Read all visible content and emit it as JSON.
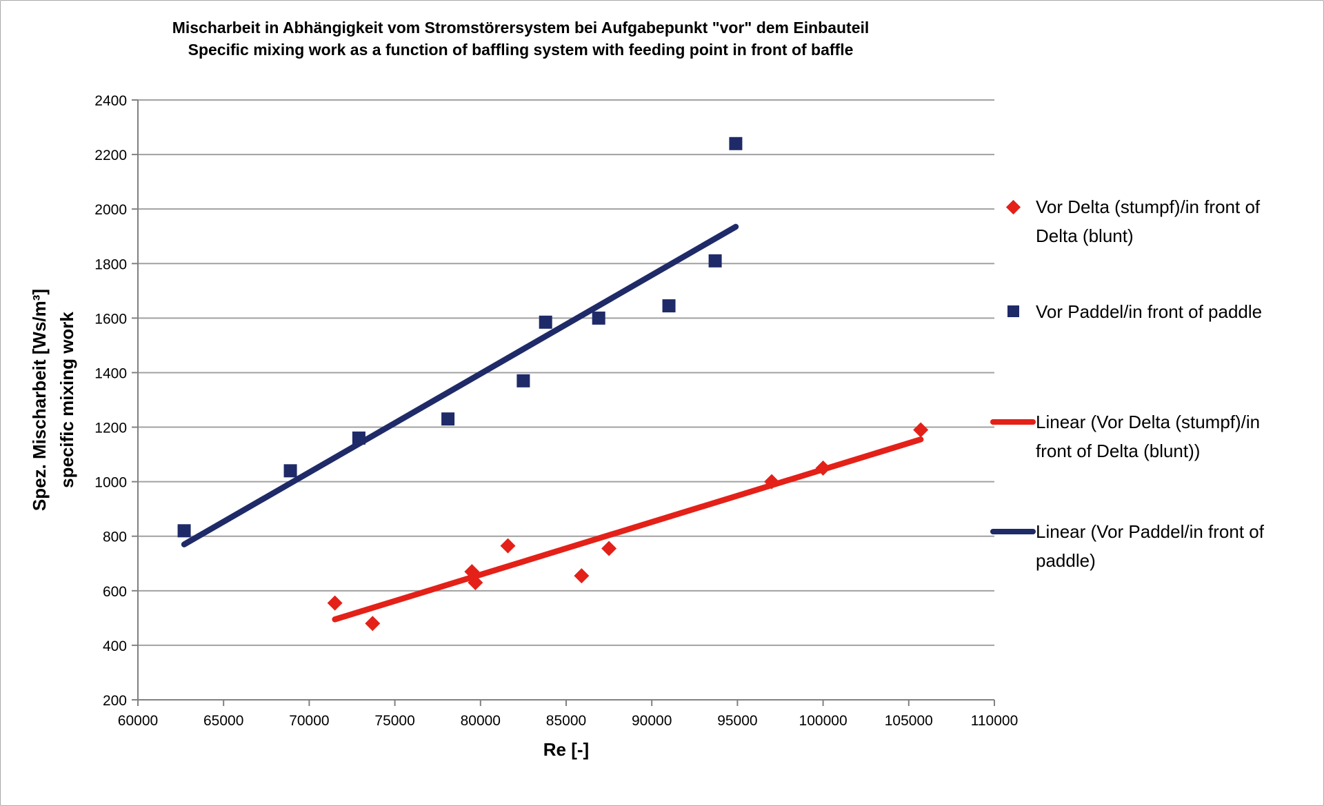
{
  "title": {
    "line1": "Mischarbeit in Abhängigkeit vom Stromstörersystem bei Aufgabepunkt \"vor\" dem Einbauteil",
    "line2": "Specific mixing work as a function of baffling system with feeding point in front of baffle"
  },
  "axes": {
    "x": {
      "label": "Re [-]"
    },
    "y": {
      "label_line1": "Spez. Mischarbeit [Ws/m³]",
      "label_line2": "specific mixing work"
    }
  },
  "colors": {
    "red": "#e32119",
    "navy": "#1f2a68",
    "gridline": "#a0a0a0",
    "axis": "#808080"
  },
  "legend": {
    "entries": [
      {
        "marker": "diamond",
        "color": "#e32119",
        "line1": "Vor Delta (stumpf)/in front of",
        "line2": "Delta (blunt)"
      },
      {
        "marker": "square",
        "color": "#1f2a68",
        "line1": "Vor Paddel/in front of paddle",
        "line2": ""
      },
      {
        "marker": "line",
        "color": "#e32119",
        "line1": "Linear (Vor Delta (stumpf)/in",
        "line2": "front of Delta (blunt))"
      },
      {
        "marker": "line",
        "color": "#1f2a68",
        "line1": "Linear (Vor Paddel/in front of",
        "line2": "paddle)"
      }
    ]
  },
  "chart_data": {
    "type": "scatter",
    "title": "Mischarbeit in Abhängigkeit vom Stromstörersystem bei Aufgabepunkt \"vor\" dem Einbauteil / Specific mixing work as a function of baffling system with feeding point in front of baffle",
    "xlabel": "Re [-]",
    "ylabel": "Spez. Mischarbeit [Ws/m³] specific mixing work",
    "xlim": [
      60000,
      110000
    ],
    "ylim": [
      200,
      2400
    ],
    "xstep": 5000,
    "ystep": 200,
    "grid": "horizontal",
    "legend_position": "right",
    "series": [
      {
        "name": "Vor Delta (stumpf)/in front of Delta (blunt)",
        "marker": "diamond",
        "color": "#e32119",
        "points": [
          [
            71500,
            555
          ],
          [
            73700,
            480
          ],
          [
            79500,
            670
          ],
          [
            79700,
            630
          ],
          [
            81600,
            765
          ],
          [
            85900,
            655
          ],
          [
            87500,
            755
          ],
          [
            97000,
            1000
          ],
          [
            100000,
            1050
          ],
          [
            105700,
            1190
          ]
        ]
      },
      {
        "name": "Vor Paddel/in front of paddle",
        "marker": "square",
        "color": "#1f2a68",
        "points": [
          [
            62700,
            820
          ],
          [
            68900,
            1040
          ],
          [
            72900,
            1160
          ],
          [
            78100,
            1230
          ],
          [
            82500,
            1370
          ],
          [
            83800,
            1585
          ],
          [
            86900,
            1600
          ],
          [
            91000,
            1645
          ],
          [
            93700,
            1810
          ],
          [
            94900,
            2240
          ]
        ]
      }
    ],
    "trendlines": [
      {
        "name": "Linear (Vor Delta (stumpf)/in front of Delta (blunt))",
        "color": "#e32119",
        "from": [
          71500,
          495
        ],
        "to": [
          105700,
          1155
        ]
      },
      {
        "name": "Linear (Vor Paddel/in front of paddle)",
        "color": "#1f2a68",
        "from": [
          62700,
          770
        ],
        "to": [
          94900,
          1935
        ]
      }
    ]
  }
}
